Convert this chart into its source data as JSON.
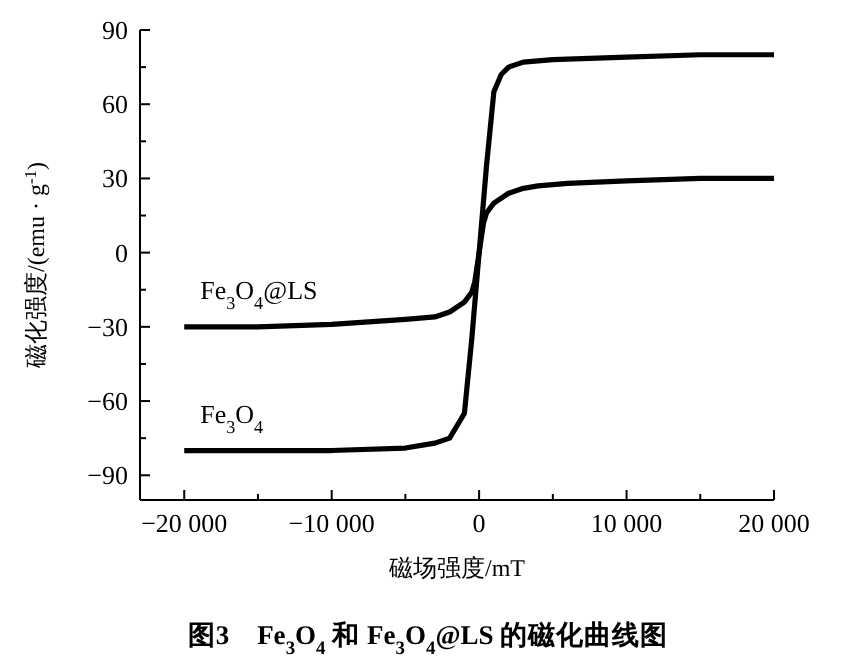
{
  "chart_data": {
    "type": "line",
    "title": "图3　Fe$_{3}$O$_{4}$ 和 Fe$_{3}$O$_{4}$@LS 的磁化曲线图",
    "xlabel": "磁场强度/mT",
    "ylabel": "磁化强度/(emu · g$^{-1}$)",
    "xlim": [
      -23000,
      20000
    ],
    "ylim": [
      -100,
      90
    ],
    "xticks": [
      {
        "value": -20000,
        "label": "−20 000"
      },
      {
        "value": -10000,
        "label": "−10 000"
      },
      0,
      {
        "value": 10000,
        "label": "10 000"
      },
      {
        "value": 20000,
        "label": "20 000"
      }
    ],
    "yticks": [
      {
        "value": -90,
        "label": "−90"
      },
      {
        "value": -60,
        "label": "−60"
      },
      {
        "value": -30,
        "label": "−30"
      },
      0,
      30,
      60,
      90
    ],
    "grid": false,
    "marker": "none",
    "line_style": "solid",
    "series": [
      {
        "name": "Fe$_{3}$O$_{4}$@LS",
        "color": "#000000",
        "x": [
          -20000,
          -15000,
          -10000,
          -5000,
          -3000,
          -2000,
          -1000,
          -500,
          -300,
          0,
          300,
          500,
          1000,
          2000,
          3000,
          4000,
          6000,
          10000,
          15000,
          20000
        ],
        "values": [
          -30,
          -30,
          -29,
          -27,
          -26,
          -24,
          -20,
          -16,
          -12,
          0,
          12,
          16,
          20,
          24,
          26,
          27,
          28,
          29,
          30,
          30
        ]
      },
      {
        "name": "Fe$_{3}$O$_{4}$",
        "color": "#000000",
        "x": [
          -20000,
          -15000,
          -10000,
          -5000,
          -3000,
          -2000,
          -1500,
          -1000,
          -500,
          0,
          500,
          1000,
          1500,
          2000,
          3000,
          5000,
          10000,
          15000,
          20000
        ],
        "values": [
          -80,
          -80,
          -80,
          -79,
          -77,
          -75,
          -70,
          -65,
          -35,
          0,
          35,
          65,
          72,
          75,
          77,
          78,
          79,
          80,
          80
        ]
      }
    ]
  }
}
